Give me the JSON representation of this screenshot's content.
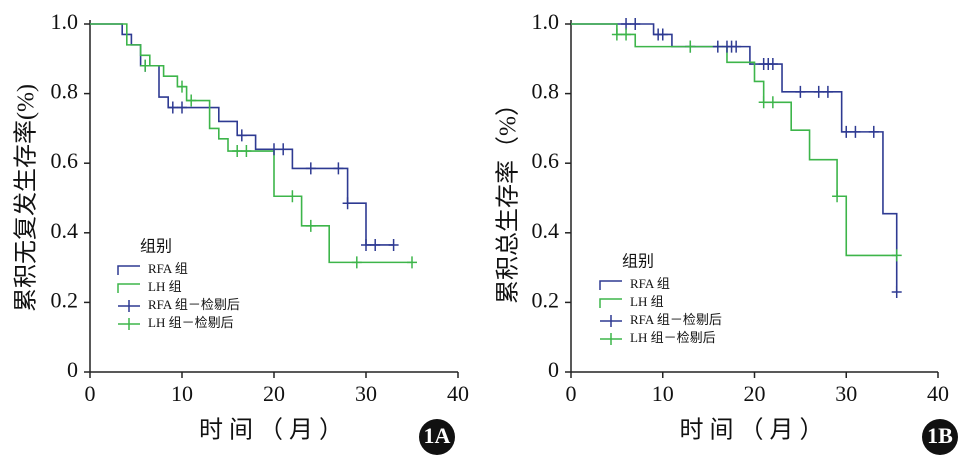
{
  "chart_data": [
    {
      "type": "step",
      "panel": "1A",
      "x_label": "时间（月）",
      "y_label": "累积无复发生存率(%)",
      "legend_title": "组别",
      "xlim": [
        0,
        40
      ],
      "xticks": [
        0,
        10,
        20,
        30,
        40
      ],
      "ylim": [
        0,
        1
      ],
      "yticks": [
        0,
        0.2,
        0.4,
        0.6,
        0.8,
        {
          "value": 1,
          "label": "1.0"
        }
      ],
      "series": [
        {
          "name": "RFA 组",
          "color": "#2e3a92",
          "x": [
            0,
            3.5,
            4.5,
            5.5,
            7.5,
            8.5,
            14,
            16,
            18,
            22,
            28,
            30,
            33
          ],
          "values": [
            1,
            0.97,
            0.94,
            0.88,
            0.79,
            0.76,
            0.72,
            0.68,
            0.64,
            0.585,
            0.485,
            0.365,
            0.365
          ]
        },
        {
          "name": "LH 组",
          "color": "#3db54a",
          "x": [
            0,
            4,
            5.5,
            6.5,
            8,
            9.5,
            10.5,
            13,
            14,
            15,
            20,
            23,
            26,
            35
          ],
          "values": [
            1,
            0.94,
            0.91,
            0.88,
            0.85,
            0.82,
            0.78,
            0.7,
            0.67,
            0.635,
            0.505,
            0.42,
            0.315,
            0.315
          ]
        },
        {
          "name": "RFA 组－检剔后",
          "color": "#2e3a92",
          "marker": "+",
          "x": [
            6,
            9,
            10,
            16.5,
            20,
            21,
            24,
            27,
            28,
            30,
            31,
            33
          ],
          "values": [
            0.88,
            0.76,
            0.76,
            0.68,
            0.64,
            0.64,
            0.585,
            0.585,
            0.485,
            0.365,
            0.365,
            0.365
          ]
        },
        {
          "name": "LH 组－检剔后",
          "color": "#3db54a",
          "marker": "+",
          "x": [
            6,
            10,
            11,
            16,
            17,
            22,
            24,
            29,
            35
          ],
          "values": [
            0.88,
            0.82,
            0.78,
            0.635,
            0.635,
            0.505,
            0.42,
            0.315,
            0.315
          ]
        }
      ]
    },
    {
      "type": "step",
      "panel": "1B",
      "x_label": "时间（月）",
      "y_label": "累积总生存率（%）",
      "legend_title": "组别",
      "xlim": [
        0,
        40
      ],
      "xticks": [
        0,
        10,
        20,
        30,
        40
      ],
      "ylim": [
        0,
        1
      ],
      "yticks": [
        0,
        0.2,
        0.4,
        0.6,
        0.8,
        {
          "value": 1,
          "label": "1.0"
        }
      ],
      "series": [
        {
          "name": "RFA 组",
          "color": "#2e3a92",
          "x": [
            0,
            9,
            11,
            19.5,
            23,
            29.5,
            34,
            35.5
          ],
          "values": [
            1,
            0.97,
            0.935,
            0.885,
            0.805,
            0.69,
            0.455,
            0.23
          ]
        },
        {
          "name": "LH 组",
          "color": "#3db54a",
          "x": [
            0,
            5,
            7,
            17,
            20,
            21,
            24,
            26,
            29,
            30,
            35.5
          ],
          "values": [
            1,
            0.97,
            0.935,
            0.89,
            0.835,
            0.775,
            0.695,
            0.61,
            0.505,
            0.335,
            0.335
          ]
        },
        {
          "name": "RFA 组－检剔后",
          "color": "#2e3a92",
          "marker": "+",
          "x": [
            6,
            7,
            9.5,
            10,
            13,
            16,
            17,
            17.5,
            18,
            21,
            21.5,
            22,
            25,
            27,
            28,
            30,
            31,
            33,
            35.5
          ],
          "values": [
            1,
            1,
            0.97,
            0.97,
            0.935,
            0.935,
            0.935,
            0.935,
            0.935,
            0.885,
            0.885,
            0.885,
            0.805,
            0.805,
            0.805,
            0.69,
            0.69,
            0.69,
            0.23
          ]
        },
        {
          "name": "LH 组－检剔后",
          "color": "#3db54a",
          "marker": "+",
          "x": [
            5,
            6,
            13,
            21,
            22,
            29,
            35.5
          ],
          "values": [
            0.97,
            0.97,
            0.935,
            0.775,
            0.775,
            0.505,
            0.335
          ]
        }
      ]
    }
  ]
}
